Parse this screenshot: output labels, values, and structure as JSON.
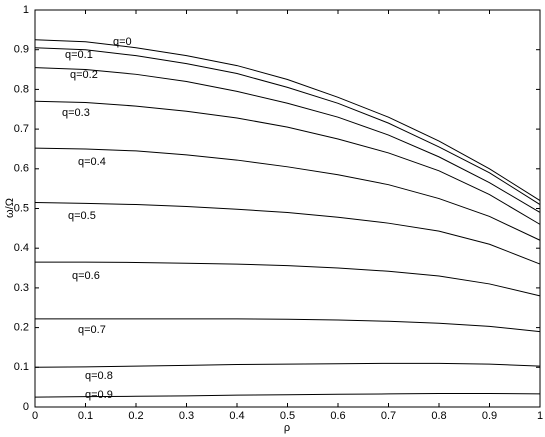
{
  "chart_data": {
    "type": "line",
    "x_label": "ρ",
    "y_label": "ω/Ω",
    "x": [
      0,
      0.1,
      0.2,
      0.3,
      0.4,
      0.5,
      0.6,
      0.7,
      0.8,
      0.9,
      1
    ],
    "series": [
      {
        "name": "q=0",
        "color": "#000000",
        "values": [
          0.925,
          0.92,
          0.905,
          0.885,
          0.86,
          0.825,
          0.78,
          0.73,
          0.67,
          0.6,
          0.52
        ]
      },
      {
        "name": "q=0.1",
        "color": "#000000",
        "values": [
          0.905,
          0.9,
          0.885,
          0.865,
          0.84,
          0.805,
          0.765,
          0.715,
          0.655,
          0.59,
          0.51
        ]
      },
      {
        "name": "q=0.2",
        "color": "#000000",
        "values": [
          0.855,
          0.85,
          0.838,
          0.82,
          0.795,
          0.765,
          0.73,
          0.685,
          0.63,
          0.565,
          0.49
        ]
      },
      {
        "name": "q=0.3",
        "color": "#000000",
        "values": [
          0.77,
          0.767,
          0.758,
          0.745,
          0.728,
          0.705,
          0.675,
          0.64,
          0.595,
          0.535,
          0.46
        ]
      },
      {
        "name": "q=0.4",
        "color": "#000000",
        "values": [
          0.652,
          0.65,
          0.645,
          0.635,
          0.622,
          0.605,
          0.585,
          0.56,
          0.525,
          0.48,
          0.42
        ]
      },
      {
        "name": "q=0.5",
        "color": "#000000",
        "values": [
          0.515,
          0.513,
          0.51,
          0.505,
          0.498,
          0.49,
          0.478,
          0.463,
          0.443,
          0.41,
          0.36
        ]
      },
      {
        "name": "q=0.6",
        "color": "#000000",
        "values": [
          0.365,
          0.365,
          0.364,
          0.362,
          0.36,
          0.356,
          0.35,
          0.342,
          0.33,
          0.31,
          0.28
        ]
      },
      {
        "name": "q=0.7",
        "color": "#000000",
        "values": [
          0.222,
          0.222,
          0.222,
          0.222,
          0.222,
          0.221,
          0.219,
          0.216,
          0.211,
          0.203,
          0.19
        ]
      },
      {
        "name": "q=0.8",
        "color": "#000000",
        "values": [
          0.1,
          0.101,
          0.103,
          0.105,
          0.107,
          0.108,
          0.109,
          0.11,
          0.11,
          0.108,
          0.103
        ]
      },
      {
        "name": "q=0.9",
        "color": "#000000",
        "values": [
          0.025,
          0.026,
          0.027,
          0.028,
          0.03,
          0.031,
          0.032,
          0.033,
          0.034,
          0.034,
          0.033
        ]
      }
    ],
    "xlim": [
      0,
      1
    ],
    "ylim": [
      0,
      1
    ],
    "xticks": [
      0,
      0.1,
      0.2,
      0.3,
      0.4,
      0.5,
      0.6,
      0.7,
      0.8,
      0.9,
      1
    ],
    "yticks": [
      0,
      0.1,
      0.2,
      0.3,
      0.4,
      0.5,
      0.6,
      0.7,
      0.8,
      0.9,
      1
    ],
    "grid": false
  }
}
